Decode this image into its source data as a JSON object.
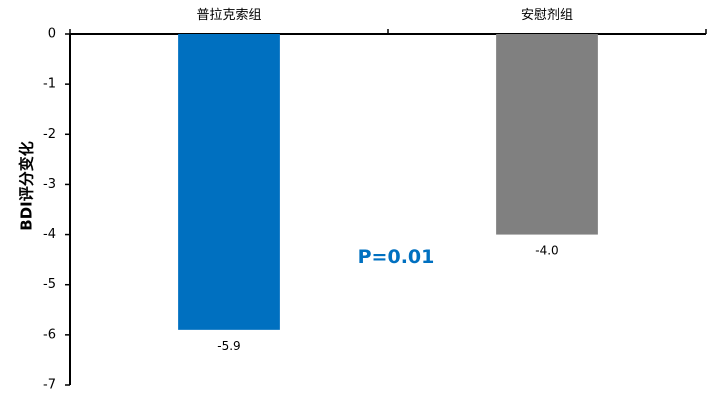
{
  "chart_data": {
    "type": "bar",
    "categories": [
      "普拉克索组",
      "安慰剂组"
    ],
    "values": [
      -5.9,
      -4.0
    ],
    "data_labels": [
      "-5.9",
      "-4.0"
    ],
    "colors": [
      "#0070C0",
      "#808080"
    ],
    "ylabel": "BDI评分变化",
    "ylim": [
      -7,
      0
    ],
    "yticks": [
      0,
      -1,
      -2,
      -3,
      -4,
      -5,
      -6,
      -7
    ],
    "category_axis_position": "top",
    "grid": false,
    "legend": "none",
    "annotation": {
      "text": "P=0.01",
      "color": "#0070C0"
    }
  }
}
